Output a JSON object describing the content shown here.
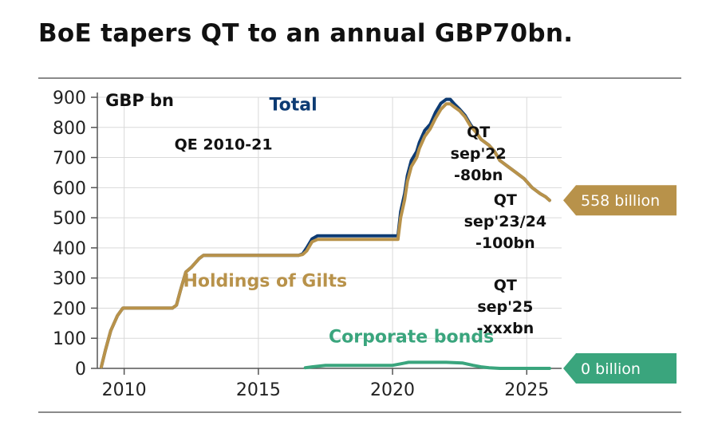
{
  "title": "BoE tapers QT to an annual GBP70bn.",
  "colors": {
    "total": "#0d3b73",
    "gilts": "#b8924a",
    "corporate": "#3aa57d",
    "grid": "#d9d9d9",
    "axis": "#555555",
    "rule": "#8a8a8a"
  },
  "chart_data": {
    "type": "line",
    "title": "",
    "xlabel": "",
    "ylabel": "GBP bn",
    "xlim": [
      2009.0,
      2026.3
    ],
    "ylim": [
      0,
      900
    ],
    "x_ticks": [
      2010,
      2015,
      2020,
      2025
    ],
    "y_ticks": [
      0,
      100,
      200,
      300,
      400,
      500,
      600,
      700,
      800,
      900
    ],
    "grid": true,
    "series": [
      {
        "name": "Total",
        "color": "#0d3b73",
        "x": [
          2009.15,
          2009.3,
          2009.5,
          2009.75,
          2009.95,
          2010.2,
          2011.0,
          2011.8,
          2011.95,
          2012.1,
          2012.3,
          2012.5,
          2012.8,
          2012.95,
          2014.0,
          2015.0,
          2016.0,
          2016.5,
          2016.65,
          2016.8,
          2017.0,
          2017.2,
          2018.0,
          2019.0,
          2020.0,
          2020.2,
          2020.3,
          2020.45,
          2020.55,
          2020.7,
          2020.9,
          2021.0,
          2021.2,
          2021.4,
          2021.6,
          2021.8,
          2022.0,
          2022.15,
          2022.3,
          2022.5,
          2022.7,
          2022.9,
          2023.1,
          2023.3,
          2023.6,
          2023.8,
          2024.0,
          2024.3,
          2024.6,
          2024.9,
          2025.2,
          2025.5,
          2025.7,
          2025.85
        ],
        "y": [
          5,
          60,
          125,
          175,
          200,
          200,
          200,
          200,
          210,
          260,
          320,
          335,
          365,
          375,
          375,
          375,
          375,
          375,
          380,
          400,
          430,
          440,
          440,
          440,
          440,
          440,
          520,
          580,
          640,
          690,
          720,
          750,
          790,
          810,
          850,
          880,
          893,
          893,
          878,
          860,
          840,
          810,
          785,
          760,
          740,
          720,
          690,
          670,
          650,
          630,
          600,
          580,
          570,
          558
        ]
      },
      {
        "name": "Holdings of Gilts",
        "color": "#b8924a",
        "x": [
          2009.15,
          2009.3,
          2009.5,
          2009.75,
          2009.95,
          2010.2,
          2011.0,
          2011.8,
          2011.95,
          2012.1,
          2012.3,
          2012.5,
          2012.8,
          2012.95,
          2014.0,
          2015.0,
          2016.0,
          2016.5,
          2016.65,
          2016.8,
          2017.0,
          2017.2,
          2018.0,
          2019.0,
          2020.0,
          2020.2,
          2020.3,
          2020.45,
          2020.55,
          2020.7,
          2020.9,
          2021.0,
          2021.2,
          2021.4,
          2021.6,
          2021.8,
          2022.0,
          2022.15,
          2022.3,
          2022.5,
          2022.7,
          2022.9,
          2023.1,
          2023.3,
          2023.6,
          2023.8,
          2024.0,
          2024.3,
          2024.6,
          2024.9,
          2025.2,
          2025.5,
          2025.7,
          2025.85
        ],
        "y": [
          5,
          60,
          125,
          175,
          200,
          200,
          200,
          200,
          210,
          260,
          320,
          335,
          365,
          375,
          375,
          375,
          375,
          375,
          378,
          390,
          420,
          428,
          428,
          428,
          428,
          428,
          500,
          560,
          620,
          670,
          700,
          730,
          770,
          795,
          830,
          860,
          878,
          878,
          868,
          855,
          835,
          805,
          785,
          760,
          740,
          720,
          690,
          670,
          650,
          630,
          600,
          580,
          570,
          558
        ]
      },
      {
        "name": "Corporate bonds",
        "color": "#3aa57d",
        "x": [
          2016.75,
          2017.0,
          2017.5,
          2018.0,
          2019.0,
          2020.0,
          2020.3,
          2020.6,
          2021.0,
          2022.0,
          2022.6,
          2023.0,
          2023.3,
          2023.6,
          2024.0,
          2025.0,
          2025.85
        ],
        "y": [
          2,
          5,
          10,
          10,
          10,
          10,
          15,
          20,
          20,
          20,
          18,
          10,
          5,
          2,
          0,
          0,
          0
        ]
      }
    ],
    "annotations": [
      {
        "text": "GBP bn",
        "x": 2009.3,
        "y": 890
      },
      {
        "text": "Total",
        "x": 2016.3,
        "y": 875
      },
      {
        "text": "QE 2010-21",
        "x": 2013.7,
        "y": 745
      },
      {
        "text": "Holdings of Gilts",
        "x": 2015.25,
        "y": 290
      },
      {
        "text": "Corporate bonds",
        "x": 2020.7,
        "y": 105
      }
    ],
    "qt_notes": [
      {
        "lines": [
          "QT",
          "sep'22",
          "-80bn"
        ],
        "x": 2023.2
      },
      {
        "lines": [
          "QT",
          "sep'23/24",
          "-100bn"
        ],
        "x": 2024.2
      },
      {
        "lines": [
          "QT",
          "sep'25",
          "-xxxbn"
        ],
        "x": 2024.2
      }
    ],
    "end_labels": [
      {
        "text": "558 billion",
        "y": 558,
        "color": "#b8924a"
      },
      {
        "text": "0 billion",
        "y": 0,
        "color": "#3aa57d"
      }
    ]
  }
}
